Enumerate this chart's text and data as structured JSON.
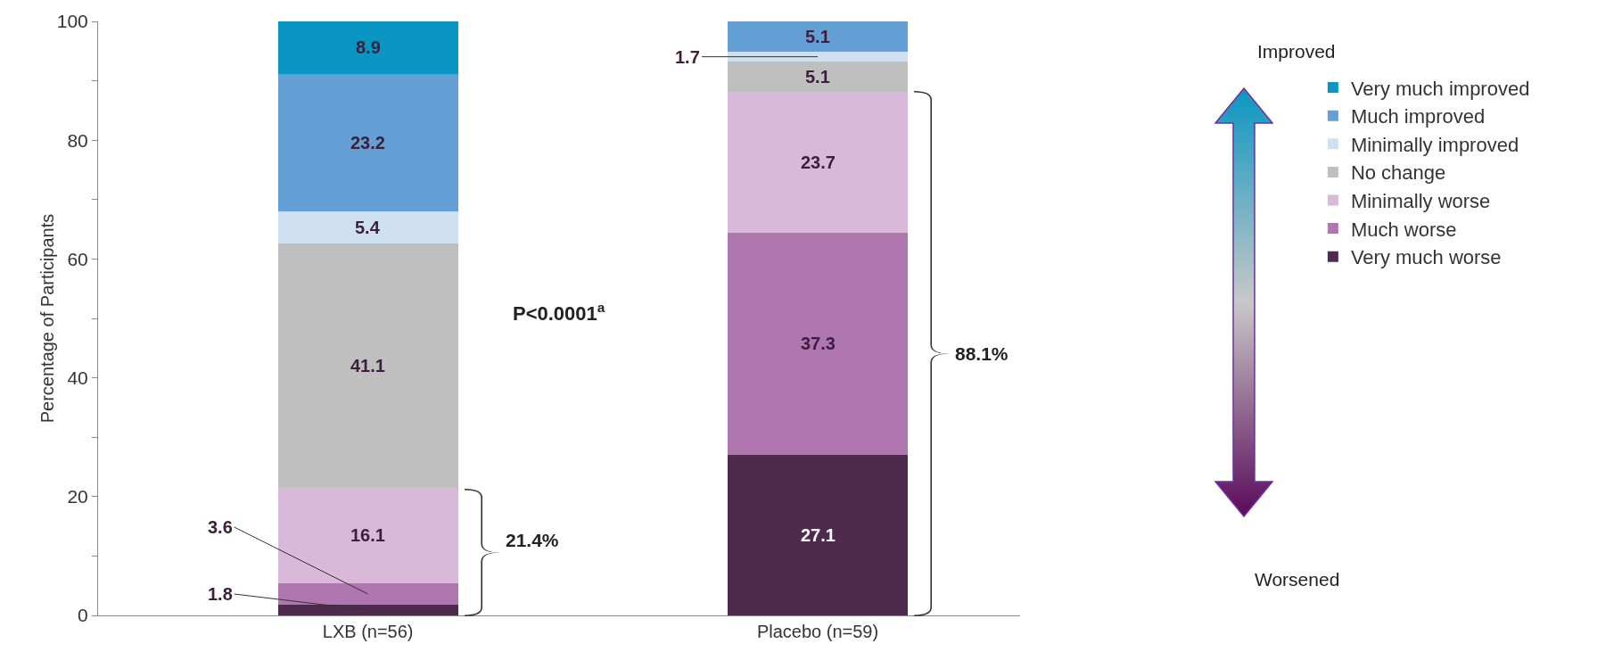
{
  "chart_data": {
    "type": "bar",
    "stacked": true,
    "ylabel": "Percentage of Participants",
    "categories": [
      "LXB (n=56)",
      "Placebo (n=59)"
    ],
    "series": [
      {
        "name": "Very much worse",
        "color": "#4f2a4f",
        "values": [
          1.8,
          27.1
        ],
        "value_labels": [
          "1.8",
          "27.1"
        ]
      },
      {
        "name": "Much worse",
        "color": "#b076b0",
        "values": [
          3.6,
          37.3
        ],
        "value_labels": [
          "3.6",
          "37.3"
        ]
      },
      {
        "name": "Minimally worse",
        "color": "#d9b8d9",
        "values": [
          16.1,
          23.7
        ],
        "value_labels": [
          "16.1",
          "23.7"
        ]
      },
      {
        "name": "No change",
        "color": "#bfbfbf",
        "values": [
          41.1,
          5.1
        ],
        "value_labels": [
          "41.1",
          "5.1"
        ]
      },
      {
        "name": "Minimally improved",
        "color": "#cfe0f1",
        "values": [
          5.4,
          1.7
        ],
        "value_labels": [
          "5.4",
          "1.7"
        ]
      },
      {
        "name": "Much improved",
        "color": "#64a0d5",
        "values": [
          23.2,
          5.1
        ],
        "value_labels": [
          "23.2",
          "5.1"
        ]
      },
      {
        "name": "Very much improved",
        "color": "#0a96c2",
        "values": [
          8.9,
          null
        ],
        "value_labels": [
          "8.9",
          null
        ]
      }
    ],
    "ylim": [
      0,
      100
    ],
    "yticks": [
      0,
      {
        "value": 10,
        "label": null
      },
      20,
      {
        "value": 30,
        "label": null
      },
      40,
      {
        "value": 50,
        "label": null
      },
      60,
      {
        "value": 70,
        "label": null
      },
      80,
      {
        "value": 90,
        "label": null
      },
      100
    ],
    "grid": false,
    "legend": "right",
    "annotations": [
      "P<0.0001$^{a}$",
      "21.4%",
      "88.1%",
      "Improved",
      "Worsened"
    ]
  }
}
